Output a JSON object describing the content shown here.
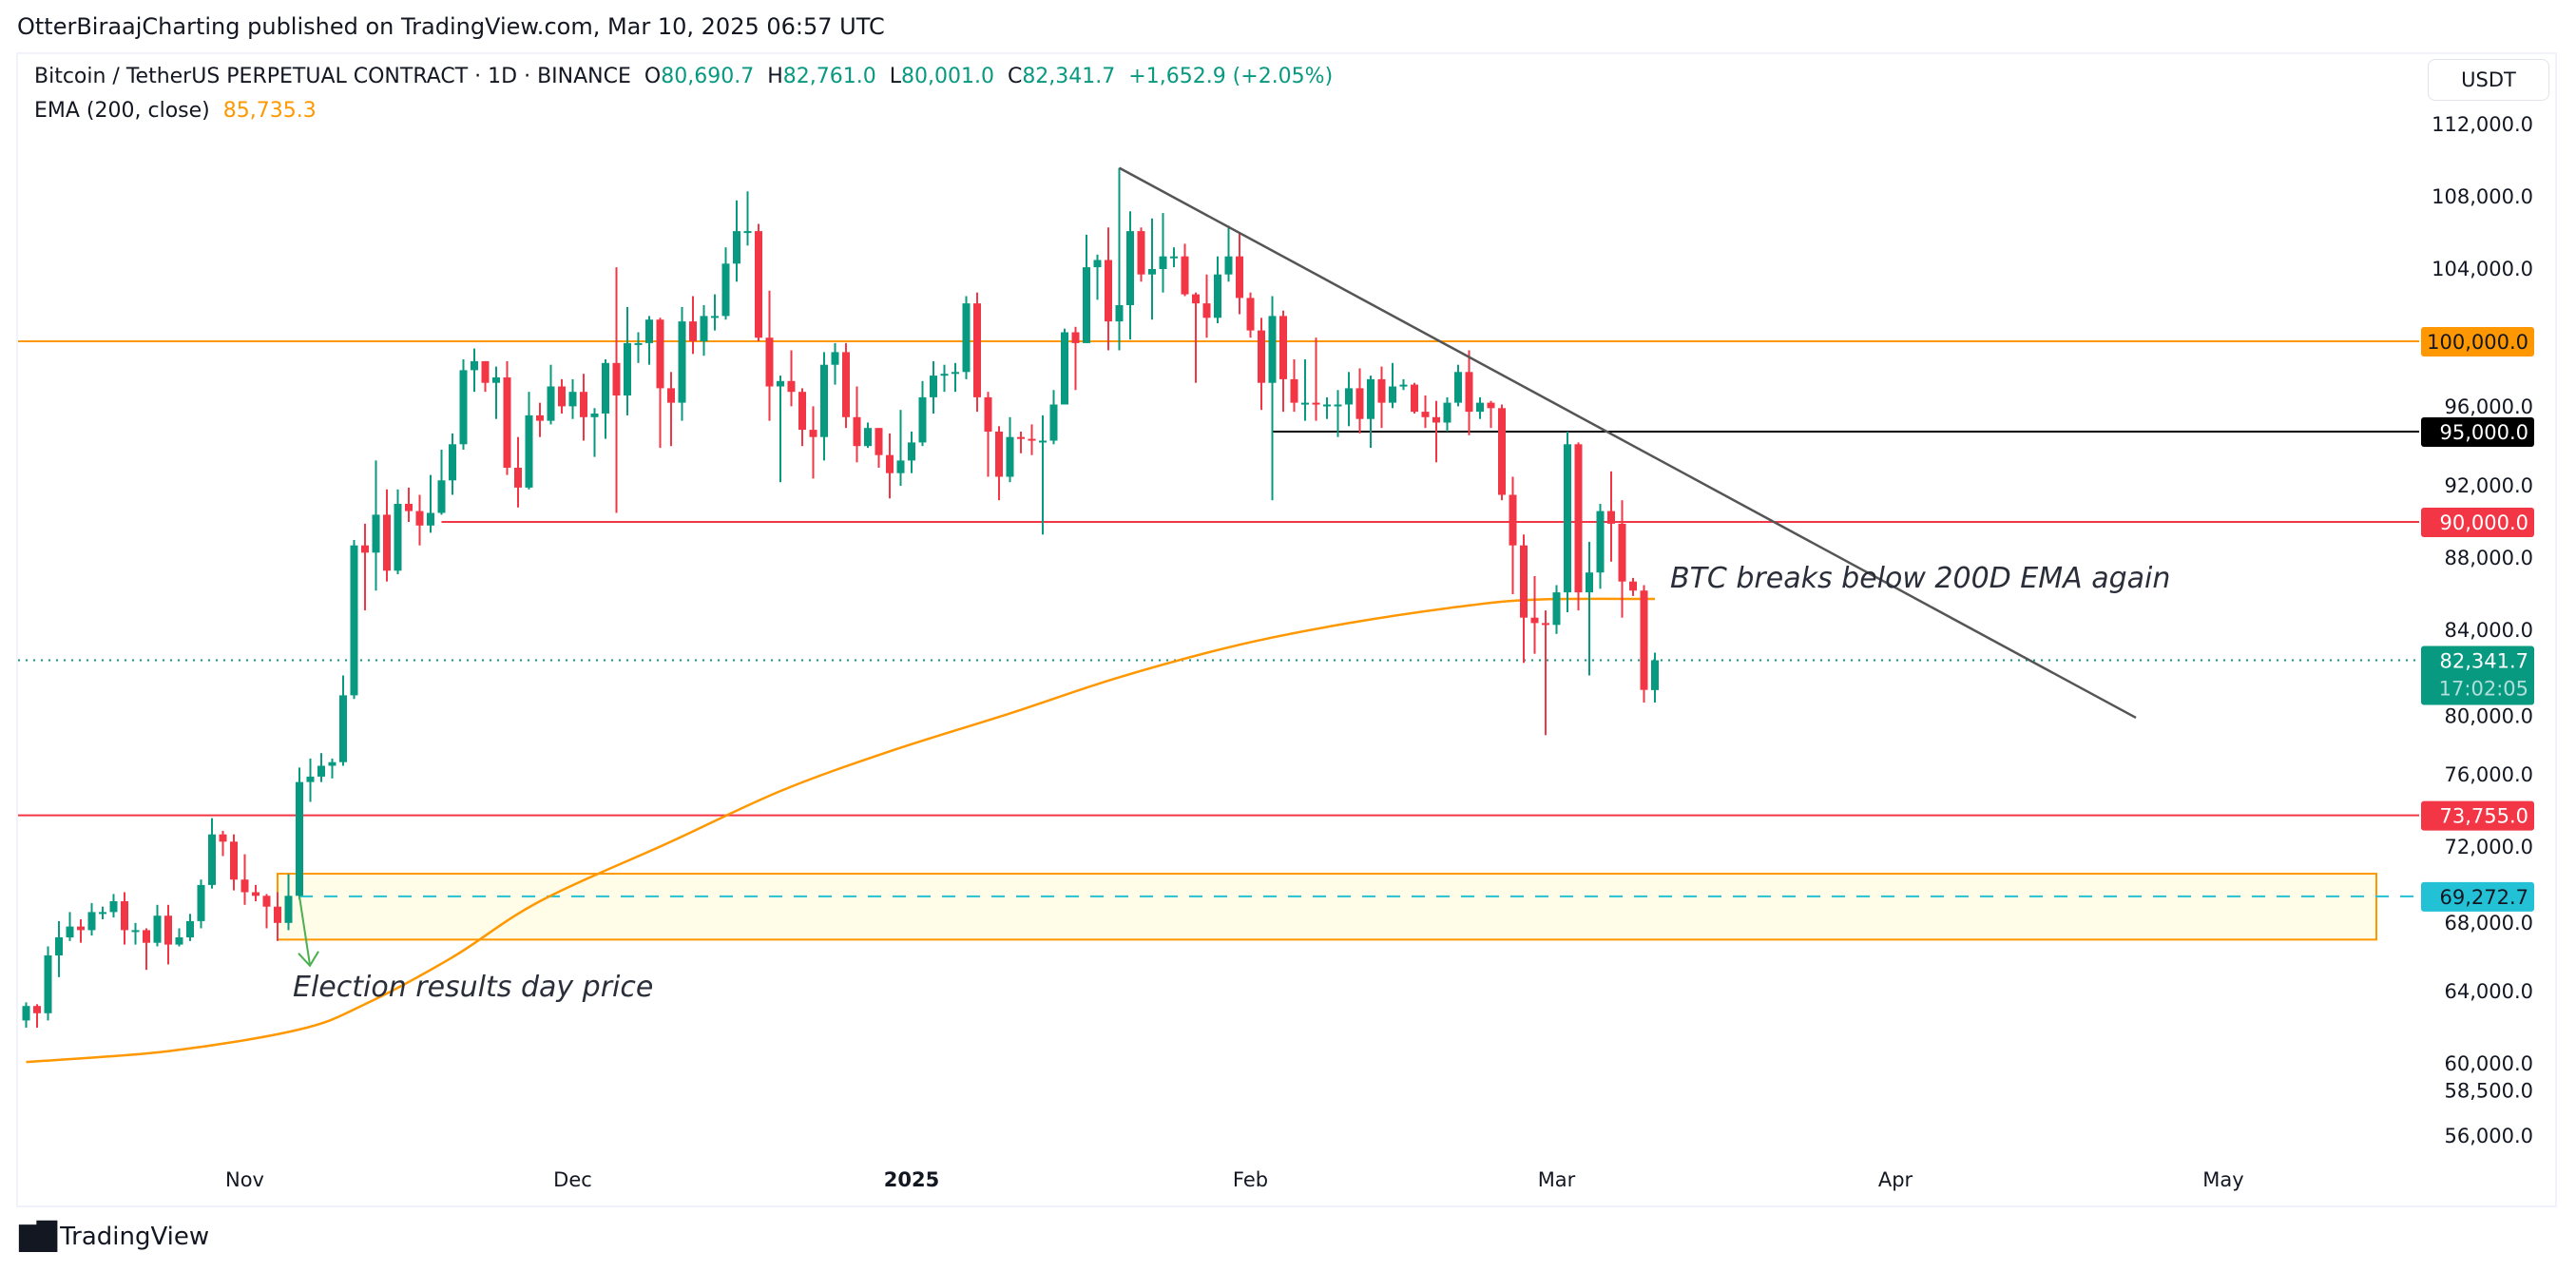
{
  "header": {
    "published": "OtterBiraajCharting published on TradingView.com, Mar 10, 2025 06:57 UTC"
  },
  "legend": {
    "symbol": "Bitcoin / TetherUS PERPETUAL CONTRACT · 1D · BINANCE",
    "o_label": "O",
    "o_value": "80,690.7",
    "h_label": "H",
    "h_value": "82,761.0",
    "l_label": "L",
    "l_value": "80,001.0",
    "c_label": "C",
    "c_value": "82,341.7",
    "change": "+1,652.9 (+2.05%)",
    "ema_label": "EMA (200, close)",
    "ema_value": "85,735.3"
  },
  "currency": "USDT",
  "footer": {
    "logo_text": "TradingView"
  },
  "colors": {
    "up": "#089981",
    "down": "#F23645",
    "ema": "#FF9800",
    "resistance": "#FF9800",
    "support": "#F23645",
    "level_black": "#000000",
    "election": "#22C1D6",
    "trendline": "#555555"
  },
  "chart_data": {
    "type": "candlestick",
    "title": "",
    "xlabel": "",
    "ylabel": "",
    "ylim": [
      53500,
      115000
    ],
    "yscale": "linear",
    "grid": false,
    "y_ticks": [
      "112,000.0",
      "108,000.0",
      "104,000.0",
      "96,000.0",
      "92,000.0",
      "88,000.0",
      "84,000.0",
      "80,000.0",
      "76,000.0",
      "72,000.0",
      "68,000.0",
      "64,000.0",
      "60,000.0",
      "58,500.0",
      "56,000.0"
    ],
    "x_ticks": [
      {
        "label": "Nov",
        "date": "2024-11-01"
      },
      {
        "label": "Dec",
        "date": "2024-12-01"
      },
      {
        "label": "2025",
        "date": "2025-01-01"
      },
      {
        "label": "Feb",
        "date": "2025-02-01"
      },
      {
        "label": "Mar",
        "date": "2025-03-01"
      },
      {
        "label": "Apr",
        "date": "2025-04-01"
      },
      {
        "label": "May",
        "date": "2025-05-01"
      }
    ],
    "candles_columns": [
      "date",
      "open",
      "high",
      "low",
      "close"
    ],
    "candles": [
      [
        "2024-10-12",
        62400,
        63400,
        62000,
        63200
      ],
      [
        "2024-10-13",
        63200,
        63300,
        62000,
        62800
      ],
      [
        "2024-10-14",
        62800,
        66500,
        62400,
        66000
      ],
      [
        "2024-10-15",
        66000,
        67900,
        64800,
        67000
      ],
      [
        "2024-10-16",
        67000,
        68400,
        66800,
        67600
      ],
      [
        "2024-10-17",
        67600,
        68000,
        66700,
        67400
      ],
      [
        "2024-10-18",
        67400,
        68900,
        67100,
        68400
      ],
      [
        "2024-10-19",
        68400,
        68700,
        68000,
        68400
      ],
      [
        "2024-10-20",
        68400,
        69400,
        68100,
        69000
      ],
      [
        "2024-10-21",
        69000,
        69500,
        66600,
        67400
      ],
      [
        "2024-10-22",
        67400,
        67800,
        66600,
        67400
      ],
      [
        "2024-10-23",
        67400,
        67500,
        65200,
        66700
      ],
      [
        "2024-10-24",
        66700,
        68800,
        66500,
        68200
      ],
      [
        "2024-10-25",
        68200,
        68800,
        65500,
        66600
      ],
      [
        "2024-10-26",
        66600,
        67500,
        66500,
        67000
      ],
      [
        "2024-10-27",
        67000,
        68300,
        66800,
        67900
      ],
      [
        "2024-10-28",
        67900,
        70200,
        67500,
        69900
      ],
      [
        "2024-10-29",
        69900,
        73600,
        69700,
        72700
      ],
      [
        "2024-10-30",
        72700,
        72900,
        71500,
        72300
      ],
      [
        "2024-10-31",
        72300,
        72700,
        69600,
        70200
      ],
      [
        "2024-11-01",
        70200,
        71600,
        68800,
        69500
      ],
      [
        "2024-11-02",
        69500,
        69900,
        69000,
        69300
      ],
      [
        "2024-11-03",
        69300,
        69400,
        67500,
        68700
      ],
      [
        "2024-11-04",
        68700,
        69500,
        66800,
        67800
      ],
      [
        "2024-11-05",
        67800,
        70500,
        67400,
        69300
      ],
      [
        "2024-11-06",
        69300,
        76400,
        69100,
        75600
      ],
      [
        "2024-11-07",
        75600,
        76900,
        74500,
        75900
      ],
      [
        "2024-11-08",
        75900,
        77200,
        75600,
        76500
      ],
      [
        "2024-11-09",
        76500,
        76900,
        75800,
        76700
      ],
      [
        "2024-11-10",
        76700,
        81500,
        76500,
        80400
      ],
      [
        "2024-11-11",
        80400,
        89000,
        80200,
        88700
      ],
      [
        "2024-11-12",
        88700,
        89900,
        85100,
        88300
      ],
      [
        "2024-11-13",
        88300,
        93400,
        86200,
        90400
      ],
      [
        "2024-11-14",
        90400,
        91800,
        86700,
        87300
      ],
      [
        "2024-11-15",
        87300,
        91800,
        87100,
        91000
      ],
      [
        "2024-11-16",
        91000,
        91900,
        90000,
        90600
      ],
      [
        "2024-11-17",
        90600,
        91500,
        88700,
        89800
      ],
      [
        "2024-11-18",
        89800,
        92600,
        89400,
        90500
      ],
      [
        "2024-11-19",
        90500,
        94000,
        90400,
        92300
      ],
      [
        "2024-11-20",
        92300,
        94900,
        91500,
        94300
      ],
      [
        "2024-11-21",
        94300,
        99000,
        94000,
        98400
      ],
      [
        "2024-11-22",
        98400,
        99600,
        97200,
        98900
      ],
      [
        "2024-11-23",
        98900,
        98900,
        97200,
        97700
      ],
      [
        "2024-11-24",
        97700,
        98600,
        95700,
        98000
      ],
      [
        "2024-11-25",
        98000,
        98900,
        92600,
        93000
      ],
      [
        "2024-11-26",
        93000,
        94700,
        90800,
        91900
      ],
      [
        "2024-11-27",
        91900,
        97200,
        91800,
        95900
      ],
      [
        "2024-11-28",
        95900,
        96600,
        94700,
        95600
      ],
      [
        "2024-11-29",
        95600,
        98700,
        95400,
        97500
      ],
      [
        "2024-11-30",
        97500,
        97900,
        96000,
        96400
      ],
      [
        "2024-12-01",
        96400,
        97900,
        95700,
        97200
      ],
      [
        "2024-12-02",
        97200,
        98200,
        94500,
        95800
      ],
      [
        "2024-12-03",
        95800,
        96300,
        93600,
        96000
      ],
      [
        "2024-12-04",
        96000,
        99000,
        94600,
        98800
      ],
      [
        "2024-12-05",
        98800,
        104100,
        90500,
        97000
      ],
      [
        "2024-12-06",
        97000,
        101900,
        95900,
        99900
      ],
      [
        "2024-12-07",
        99900,
        100500,
        98800,
        99900
      ],
      [
        "2024-12-08",
        99900,
        101400,
        98700,
        101200
      ],
      [
        "2024-12-09",
        101200,
        101300,
        94100,
        97400
      ],
      [
        "2024-12-10",
        97400,
        98300,
        94200,
        96600
      ],
      [
        "2024-12-11",
        96600,
        101900,
        95600,
        101100
      ],
      [
        "2024-12-12",
        101100,
        102500,
        99300,
        100000
      ],
      [
        "2024-12-13",
        100000,
        102000,
        99200,
        101400
      ],
      [
        "2024-12-14",
        101400,
        102600,
        100600,
        101400
      ],
      [
        "2024-12-15",
        101400,
        105200,
        101200,
        104300
      ],
      [
        "2024-12-16",
        104300,
        107800,
        103300,
        106100
      ],
      [
        "2024-12-17",
        106100,
        108300,
        105300,
        106100
      ],
      [
        "2024-12-18",
        106100,
        106500,
        100000,
        100200
      ],
      [
        "2024-12-19",
        100200,
        102800,
        95600,
        97500
      ],
      [
        "2024-12-20",
        97500,
        98100,
        92200,
        97800
      ],
      [
        "2024-12-21",
        97800,
        99500,
        96400,
        97200
      ],
      [
        "2024-12-22",
        97200,
        97400,
        94200,
        95100
      ],
      [
        "2024-12-23",
        95100,
        96400,
        92400,
        94700
      ],
      [
        "2024-12-24",
        94700,
        99400,
        93400,
        98700
      ],
      [
        "2024-12-25",
        98700,
        99900,
        97600,
        99400
      ],
      [
        "2024-12-26",
        99400,
        99900,
        95200,
        95800
      ],
      [
        "2024-12-27",
        95800,
        97500,
        93300,
        94200
      ],
      [
        "2024-12-28",
        94200,
        95500,
        94100,
        95200
      ],
      [
        "2024-12-29",
        95200,
        95200,
        93000,
        93700
      ],
      [
        "2024-12-30",
        93700,
        94900,
        91300,
        92700
      ],
      [
        "2024-12-31",
        92700,
        96200,
        92000,
        93400
      ],
      [
        "2025-01-01",
        93400,
        95000,
        92700,
        94400
      ],
      [
        "2025-01-02",
        94400,
        97800,
        94200,
        96900
      ],
      [
        "2025-01-03",
        96900,
        98900,
        96000,
        98100
      ],
      [
        "2025-01-04",
        98100,
        98700,
        97200,
        98200
      ],
      [
        "2025-01-05",
        98200,
        98800,
        97200,
        98300
      ],
      [
        "2025-01-06",
        98300,
        102500,
        97900,
        102100
      ],
      [
        "2025-01-07",
        102100,
        102700,
        96100,
        96900
      ],
      [
        "2025-01-08",
        96900,
        97200,
        92500,
        95000
      ],
      [
        "2025-01-09",
        95000,
        95300,
        91200,
        92500
      ],
      [
        "2025-01-10",
        92500,
        95800,
        92200,
        94700
      ],
      [
        "2025-01-11",
        94700,
        95000,
        93800,
        94600
      ],
      [
        "2025-01-12",
        94600,
        95400,
        93700,
        94500
      ],
      [
        "2025-01-13",
        94500,
        95900,
        89300,
        94500
      ],
      [
        "2025-01-14",
        94500,
        97300,
        94300,
        96500
      ],
      [
        "2025-01-15",
        96500,
        100700,
        96500,
        100500
      ],
      [
        "2025-01-16",
        100500,
        100800,
        97300,
        99900
      ],
      [
        "2025-01-17",
        99900,
        105900,
        99900,
        104100
      ],
      [
        "2025-01-18",
        104100,
        104800,
        102300,
        104500
      ],
      [
        "2025-01-19",
        104500,
        106300,
        99500,
        101100
      ],
      [
        "2025-01-20",
        101100,
        109600,
        99500,
        102000
      ],
      [
        "2025-01-21",
        102000,
        107200,
        100100,
        106100
      ],
      [
        "2025-01-22",
        106100,
        106300,
        103300,
        103700
      ],
      [
        "2025-01-23",
        103700,
        106800,
        101200,
        104000
      ],
      [
        "2025-01-24",
        104000,
        107100,
        102700,
        104700
      ],
      [
        "2025-01-25",
        104700,
        105200,
        104100,
        104700
      ],
      [
        "2025-01-26",
        104700,
        105400,
        102500,
        102600
      ],
      [
        "2025-01-27",
        102600,
        102700,
        97700,
        102100
      ],
      [
        "2025-01-28",
        102100,
        103700,
        100200,
        101300
      ],
      [
        "2025-01-29",
        101300,
        104700,
        101000,
        103700
      ],
      [
        "2025-01-30",
        103700,
        106400,
        103300,
        104700
      ],
      [
        "2025-01-31",
        104700,
        106000,
        101500,
        102400
      ],
      [
        "2025-02-01",
        102400,
        102700,
        100200,
        100600
      ],
      [
        "2025-02-02",
        100600,
        101300,
        96200,
        97700
      ],
      [
        "2025-02-03",
        97700,
        102500,
        91200,
        101400
      ],
      [
        "2025-02-04",
        101400,
        101700,
        96100,
        97900
      ],
      [
        "2025-02-05",
        97900,
        99000,
        96100,
        96600
      ],
      [
        "2025-02-06",
        96600,
        99000,
        95600,
        96600
      ],
      [
        "2025-02-07",
        96600,
        100200,
        95600,
        96500
      ],
      [
        "2025-02-08",
        96500,
        96900,
        95700,
        96500
      ],
      [
        "2025-02-09",
        96500,
        97300,
        94700,
        96500
      ],
      [
        "2025-02-10",
        96500,
        98300,
        95300,
        97400
      ],
      [
        "2025-02-11",
        97400,
        98500,
        94900,
        95700
      ],
      [
        "2025-02-12",
        95700,
        98100,
        94100,
        97900
      ],
      [
        "2025-02-13",
        97900,
        98600,
        95200,
        96600
      ],
      [
        "2025-02-14",
        96600,
        98800,
        96300,
        97500
      ],
      [
        "2025-02-15",
        97500,
        97900,
        97300,
        97600
      ],
      [
        "2025-02-16",
        97600,
        97700,
        96000,
        96100
      ],
      [
        "2025-02-17",
        96100,
        97000,
        95200,
        95800
      ],
      [
        "2025-02-18",
        95800,
        96700,
        93300,
        95500
      ],
      [
        "2025-02-19",
        95500,
        96900,
        95000,
        96600
      ],
      [
        "2025-02-20",
        96600,
        98700,
        96400,
        98300
      ],
      [
        "2025-02-21",
        98300,
        99500,
        94800,
        96100
      ],
      [
        "2025-02-22",
        96100,
        96900,
        95700,
        96600
      ],
      [
        "2025-02-23",
        96600,
        96700,
        95200,
        96300
      ],
      [
        "2025-02-24",
        96300,
        96500,
        91200,
        91500
      ],
      [
        "2025-02-25",
        91500,
        92500,
        86000,
        88700
      ],
      [
        "2025-02-26",
        88700,
        89300,
        82200,
        84700
      ],
      [
        "2025-02-27",
        84700,
        87000,
        82700,
        84400
      ],
      [
        "2025-02-28",
        84400,
        85100,
        78200,
        84300
      ],
      [
        "2025-03-01",
        84300,
        86500,
        83800,
        86100
      ],
      [
        "2025-03-02",
        86100,
        95000,
        85000,
        94300
      ],
      [
        "2025-03-03",
        94300,
        94400,
        85100,
        86100
      ],
      [
        "2025-03-04",
        86100,
        88900,
        81500,
        87200
      ],
      [
        "2025-03-05",
        87200,
        91000,
        86300,
        90600
      ],
      [
        "2025-03-06",
        90600,
        92800,
        87800,
        89900
      ],
      [
        "2025-03-07",
        89900,
        91200,
        84700,
        86700
      ],
      [
        "2025-03-08",
        86700,
        86900,
        85900,
        86200
      ],
      [
        "2025-03-09",
        86200,
        86500,
        80000,
        80700
      ],
      [
        "2025-03-10",
        80690.7,
        82761.0,
        80001.0,
        82341.7
      ]
    ],
    "ema": {
      "name": "EMA (200, close)",
      "points": [
        [
          "2024-10-12",
          60100
        ],
        [
          "2024-10-25",
          60700
        ],
        [
          "2024-11-06",
          61900
        ],
        [
          "2024-11-12",
          63300
        ],
        [
          "2024-11-20",
          65900
        ],
        [
          "2024-11-28",
          69000
        ],
        [
          "2024-12-10",
          72300
        ],
        [
          "2024-12-20",
          75100
        ],
        [
          "2024-12-30",
          77300
        ],
        [
          "2025-01-10",
          79400
        ],
        [
          "2025-01-20",
          81400
        ],
        [
          "2025-01-31",
          83200
        ],
        [
          "2025-02-10",
          84400
        ],
        [
          "2025-02-20",
          85300
        ],
        [
          "2025-02-27",
          85700
        ],
        [
          "2025-03-10",
          85735.3
        ]
      ]
    },
    "levels": [
      {
        "price": 100000,
        "label": "100,000.0",
        "color": "#FF9800",
        "text_color": "#131722",
        "from": "2024-10-10"
      },
      {
        "price": 95000,
        "label": "95,000.0",
        "color": "#000000",
        "text_color": "#FFFFFF",
        "from": "2025-02-03"
      },
      {
        "price": 90000,
        "label": "90,000.0",
        "color": "#F23645",
        "text_color": "#FFFFFF",
        "from": "2024-11-19"
      },
      {
        "price": 73755,
        "label": "73,755.0",
        "color": "#F23645",
        "text_color": "#FFFFFF",
        "from": "2024-10-10"
      }
    ],
    "last_price": {
      "price": 82341.7,
      "label": "82,341.7",
      "countdown": "17:02:05",
      "color": "#089981"
    },
    "election_price": {
      "price": 69272.7,
      "label": "69,272.7",
      "color": "#22C1D6",
      "from": "2024-11-06"
    },
    "zone": {
      "top": 70524,
      "bottom": 66876,
      "from": "2024-11-04",
      "to": "2025-05-15"
    },
    "trendline": {
      "from": [
        "2025-01-20",
        109600
      ],
      "to": [
        "2025-04-23",
        79160
      ]
    },
    "annotations": [
      {
        "text": "Election results day price",
        "date": "2024-11-06"
      },
      {
        "text": "BTC breaks below 200D EMA again",
        "date": "2025-03-11"
      }
    ]
  }
}
